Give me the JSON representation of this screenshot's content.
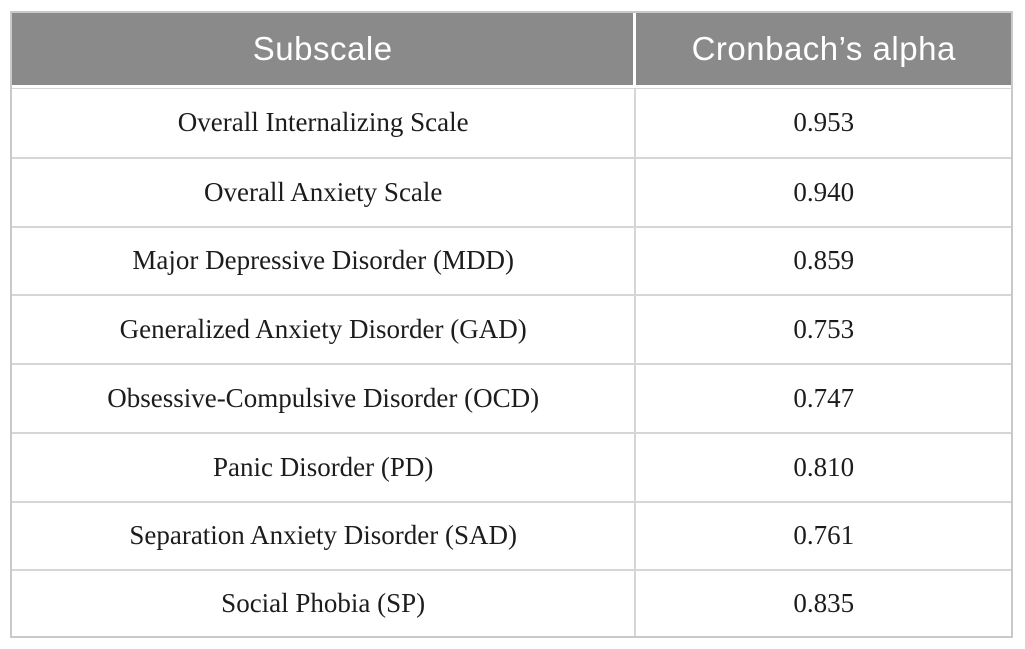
{
  "table": {
    "columns": {
      "subscale": "Subscale",
      "alpha": "Cronbach’s alpha"
    },
    "rows": [
      {
        "subscale": "Overall Internalizing Scale",
        "alpha": "0.953"
      },
      {
        "subscale": "Overall Anxiety Scale",
        "alpha": "0.940"
      },
      {
        "subscale": "Major Depressive Disorder (MDD)",
        "alpha": "0.859"
      },
      {
        "subscale": "Generalized Anxiety Disorder (GAD)",
        "alpha": "0.753"
      },
      {
        "subscale": "Obsessive-Compulsive Disorder (OCD)",
        "alpha": "0.747"
      },
      {
        "subscale": "Panic Disorder (PD)",
        "alpha": "0.810"
      },
      {
        "subscale": "Separation Anxiety Disorder (SAD)",
        "alpha": "0.761"
      },
      {
        "subscale": "Social Phobia (SP)",
        "alpha": "0.835"
      }
    ]
  },
  "colors": {
    "header_background": "#8a8a8a",
    "header_text": "#ffffff",
    "body_text": "#1c1c1c",
    "border": "#c9c9c9",
    "row_divider": "#d6d6d6"
  },
  "chart_data": {
    "type": "table",
    "title": "",
    "columns": [
      "Subscale",
      "Cronbach’s alpha"
    ],
    "categories": [
      "Overall Internalizing Scale",
      "Overall Anxiety Scale",
      "Major Depressive Disorder (MDD)",
      "Generalized Anxiety Disorder (GAD)",
      "Obsessive-Compulsive Disorder (OCD)",
      "Panic Disorder (PD)",
      "Separation Anxiety Disorder (SAD)",
      "Social Phobia (SP)"
    ],
    "values": [
      0.953,
      0.94,
      0.859,
      0.753,
      0.747,
      0.81,
      0.761,
      0.835
    ]
  }
}
